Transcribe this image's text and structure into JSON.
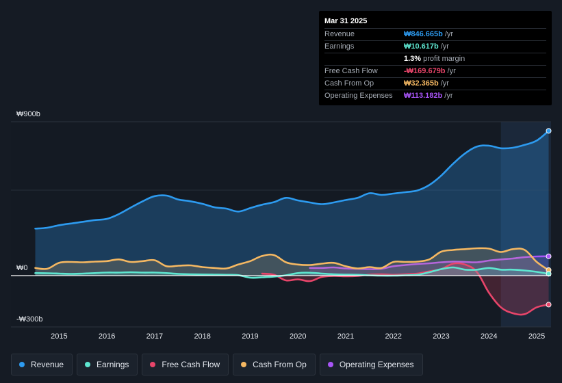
{
  "tooltip": {
    "date": "Mar 31 2025",
    "rows": [
      {
        "label": "Revenue",
        "value": "₩846.665b",
        "unit": "/yr",
        "color": "#2d9bf0"
      },
      {
        "label": "Earnings",
        "value": "₩10.617b",
        "unit": "/yr",
        "color": "#5ee6d0"
      },
      {
        "label": "",
        "value": "1.3%",
        "unit": "profit margin",
        "color": "#ffffff"
      },
      {
        "label": "Free Cash Flow",
        "value": "-₩169.679b",
        "unit": "/yr",
        "color": "#e8456a"
      },
      {
        "label": "Cash From Op",
        "value": "₩32.365b",
        "unit": "/yr",
        "color": "#f5b862"
      },
      {
        "label": "Operating Expenses",
        "value": "₩113.182b",
        "unit": "/yr",
        "color": "#a855f7"
      }
    ]
  },
  "legend": [
    {
      "label": "Revenue",
      "color": "#2d9bf0"
    },
    {
      "label": "Earnings",
      "color": "#5ee6d0"
    },
    {
      "label": "Free Cash Flow",
      "color": "#e8456a"
    },
    {
      "label": "Cash From Op",
      "color": "#f5b862"
    },
    {
      "label": "Operating Expenses",
      "color": "#a855f7"
    }
  ],
  "chart_data": {
    "type": "line",
    "title": "",
    "xlabel": "",
    "ylabel": "",
    "ylim": [
      -300,
      900
    ],
    "xlim": [
      2014.45,
      2025.3
    ],
    "x_ticks": [
      2015,
      2016,
      2017,
      2018,
      2019,
      2020,
      2021,
      2022,
      2023,
      2024,
      2025
    ],
    "y_tick_labels": [
      {
        "value": 900,
        "label": "₩900b"
      },
      {
        "value": 0,
        "label": "₩0"
      },
      {
        "value": -300,
        "label": "-₩300b"
      }
    ],
    "highlight_start": 2024.25,
    "series": [
      {
        "name": "Revenue",
        "color": "#2d9bf0",
        "fill": true,
        "points": [
          [
            2014.5,
            275
          ],
          [
            2014.75,
            280
          ],
          [
            2015,
            295
          ],
          [
            2015.25,
            305
          ],
          [
            2015.5,
            315
          ],
          [
            2015.75,
            325
          ],
          [
            2016,
            332
          ],
          [
            2016.25,
            360
          ],
          [
            2016.5,
            398
          ],
          [
            2016.75,
            435
          ],
          [
            2017,
            465
          ],
          [
            2017.25,
            468
          ],
          [
            2017.5,
            445
          ],
          [
            2017.75,
            435
          ],
          [
            2018,
            420
          ],
          [
            2018.25,
            400
          ],
          [
            2018.5,
            392
          ],
          [
            2018.75,
            375
          ],
          [
            2019,
            395
          ],
          [
            2019.25,
            415
          ],
          [
            2019.5,
            430
          ],
          [
            2019.75,
            455
          ],
          [
            2020,
            440
          ],
          [
            2020.25,
            428
          ],
          [
            2020.5,
            418
          ],
          [
            2020.75,
            428
          ],
          [
            2021,
            442
          ],
          [
            2021.25,
            455
          ],
          [
            2021.5,
            482
          ],
          [
            2021.75,
            472
          ],
          [
            2022,
            480
          ],
          [
            2022.25,
            488
          ],
          [
            2022.5,
            498
          ],
          [
            2022.75,
            530
          ],
          [
            2023,
            585
          ],
          [
            2023.25,
            655
          ],
          [
            2023.5,
            715
          ],
          [
            2023.75,
            755
          ],
          [
            2024,
            760
          ],
          [
            2024.25,
            745
          ],
          [
            2024.5,
            748
          ],
          [
            2024.75,
            765
          ],
          [
            2025,
            790
          ],
          [
            2025.25,
            846.665
          ]
        ]
      },
      {
        "name": "Earnings",
        "color": "#5ee6d0",
        "fill": true,
        "points": [
          [
            2014.5,
            15
          ],
          [
            2014.75,
            14
          ],
          [
            2015,
            12
          ],
          [
            2015.25,
            10
          ],
          [
            2015.5,
            12
          ],
          [
            2015.75,
            15
          ],
          [
            2016,
            18
          ],
          [
            2016.25,
            18
          ],
          [
            2016.5,
            20
          ],
          [
            2016.75,
            18
          ],
          [
            2017,
            18
          ],
          [
            2017.25,
            15
          ],
          [
            2017.5,
            10
          ],
          [
            2017.75,
            8
          ],
          [
            2018,
            7
          ],
          [
            2018.25,
            6
          ],
          [
            2018.5,
            5
          ],
          [
            2018.75,
            3
          ],
          [
            2019,
            -12
          ],
          [
            2019.25,
            -10
          ],
          [
            2019.5,
            -6
          ],
          [
            2019.75,
            2
          ],
          [
            2020,
            15
          ],
          [
            2020.25,
            17
          ],
          [
            2020.5,
            12
          ],
          [
            2020.75,
            8
          ],
          [
            2021,
            6
          ],
          [
            2021.25,
            5
          ],
          [
            2021.5,
            2
          ],
          [
            2021.75,
            0
          ],
          [
            2022,
            0
          ],
          [
            2022.25,
            2
          ],
          [
            2022.5,
            5
          ],
          [
            2022.75,
            20
          ],
          [
            2023,
            38
          ],
          [
            2023.25,
            48
          ],
          [
            2023.5,
            35
          ],
          [
            2023.75,
            35
          ],
          [
            2024,
            45
          ],
          [
            2024.25,
            35
          ],
          [
            2024.5,
            35
          ],
          [
            2024.75,
            30
          ],
          [
            2025,
            22
          ],
          [
            2025.25,
            10.617
          ]
        ]
      },
      {
        "name": "Free Cash Flow",
        "color": "#e8456a",
        "fill": true,
        "points": [
          [
            2019.25,
            12
          ],
          [
            2019.5,
            5
          ],
          [
            2019.75,
            -28
          ],
          [
            2020,
            -22
          ],
          [
            2020.25,
            -32
          ],
          [
            2020.5,
            -8
          ],
          [
            2020.75,
            -2
          ],
          [
            2021,
            -4
          ],
          [
            2021.25,
            -2
          ],
          [
            2021.5,
            6
          ],
          [
            2021.75,
            8
          ],
          [
            2022,
            5
          ],
          [
            2022.25,
            8
          ],
          [
            2022.5,
            12
          ],
          [
            2022.75,
            25
          ],
          [
            2023,
            38
          ],
          [
            2023.25,
            70
          ],
          [
            2023.5,
            65
          ],
          [
            2023.75,
            20
          ],
          [
            2024,
            -100
          ],
          [
            2024.25,
            -185
          ],
          [
            2024.5,
            -220
          ],
          [
            2024.75,
            -225
          ],
          [
            2025,
            -185
          ],
          [
            2025.25,
            -169.679
          ]
        ]
      },
      {
        "name": "Cash From Op",
        "color": "#f5b862",
        "fill": true,
        "points": [
          [
            2014.5,
            45
          ],
          [
            2014.75,
            40
          ],
          [
            2015,
            75
          ],
          [
            2015.25,
            80
          ],
          [
            2015.5,
            78
          ],
          [
            2015.75,
            82
          ],
          [
            2016,
            85
          ],
          [
            2016.25,
            95
          ],
          [
            2016.5,
            80
          ],
          [
            2016.75,
            85
          ],
          [
            2017,
            90
          ],
          [
            2017.25,
            55
          ],
          [
            2017.5,
            58
          ],
          [
            2017.75,
            60
          ],
          [
            2018,
            50
          ],
          [
            2018.25,
            45
          ],
          [
            2018.5,
            42
          ],
          [
            2018.75,
            65
          ],
          [
            2019,
            85
          ],
          [
            2019.25,
            115
          ],
          [
            2019.5,
            120
          ],
          [
            2019.75,
            78
          ],
          [
            2020,
            65
          ],
          [
            2020.25,
            62
          ],
          [
            2020.5,
            70
          ],
          [
            2020.75,
            75
          ],
          [
            2021,
            55
          ],
          [
            2021.25,
            42
          ],
          [
            2021.5,
            50
          ],
          [
            2021.75,
            45
          ],
          [
            2022,
            80
          ],
          [
            2022.25,
            80
          ],
          [
            2022.5,
            82
          ],
          [
            2022.75,
            95
          ],
          [
            2023,
            140
          ],
          [
            2023.25,
            150
          ],
          [
            2023.5,
            155
          ],
          [
            2023.75,
            160
          ],
          [
            2024,
            158
          ],
          [
            2024.25,
            138
          ],
          [
            2024.5,
            155
          ],
          [
            2024.75,
            150
          ],
          [
            2025,
            80
          ],
          [
            2025.25,
            32.365
          ]
        ]
      },
      {
        "name": "Operating Expenses",
        "color": "#a855f7",
        "fill": true,
        "points": [
          [
            2020.25,
            45
          ],
          [
            2020.5,
            45
          ],
          [
            2020.75,
            48
          ],
          [
            2021,
            42
          ],
          [
            2021.25,
            40
          ],
          [
            2021.5,
            38
          ],
          [
            2021.75,
            40
          ],
          [
            2022,
            55
          ],
          [
            2022.25,
            62
          ],
          [
            2022.5,
            68
          ],
          [
            2022.75,
            72
          ],
          [
            2023,
            78
          ],
          [
            2023.25,
            82
          ],
          [
            2023.5,
            80
          ],
          [
            2023.75,
            78
          ],
          [
            2024,
            88
          ],
          [
            2024.25,
            95
          ],
          [
            2024.5,
            100
          ],
          [
            2024.75,
            108
          ],
          [
            2025,
            112
          ],
          [
            2025.25,
            113.182
          ]
        ]
      }
    ]
  }
}
